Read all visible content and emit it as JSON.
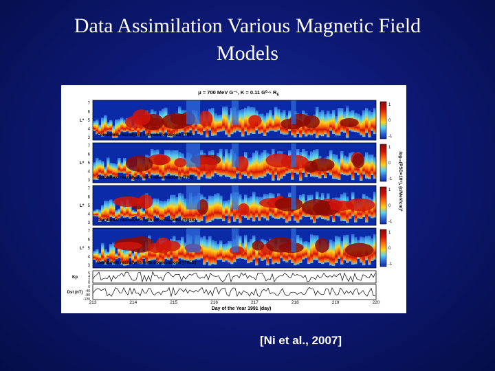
{
  "slide": {
    "title_line1": "Data Assimilation Various Magnetic Field",
    "title_line2": "Models",
    "citation": "[Ni et al., 2007]"
  },
  "figure": {
    "header": "μ = 700 MeV G⁻¹, K = 0.11 G⁰·⁵ R",
    "header_sub": "E",
    "panels": [
      {
        "label": "Combined reanalysis with observations (T89)"
      },
      {
        "label": "Combined reanalysis with observations (T96)"
      },
      {
        "label": "Combined reanalysis with observations (T01S)"
      },
      {
        "label": "Combined reanalysis with observations (T05S)"
      }
    ],
    "panel_yticks": [
      "7",
      "6",
      "5",
      "4",
      "3"
    ],
    "panel_ylabel": "L*",
    "colorbar_ticks": [
      "1",
      "0",
      "-1"
    ],
    "colorbar_label": "log₁₀(PSD×10⁶), (c/MeV/cm)³",
    "kp_label": "Kp",
    "kp_ticks": [
      "5",
      "4",
      "2",
      "0"
    ],
    "dst_label": "Dst (nT)",
    "dst_ticks": [
      "0",
      "-40",
      "-80",
      "-120"
    ],
    "xticks": [
      "213",
      "214",
      "215",
      "216",
      "217",
      "218",
      "219",
      "220"
    ],
    "xlabel": "Day of the Year 1991 (day)",
    "colors": {
      "deep": "#0a2aa8",
      "blue": "#2f6ad8",
      "cyan": "#5ad0f0",
      "green": "#c8e87a",
      "yellow": "#ffd21a",
      "orange": "#ff7a10",
      "red": "#d0140a",
      "darkred": "#8a0a06"
    }
  }
}
